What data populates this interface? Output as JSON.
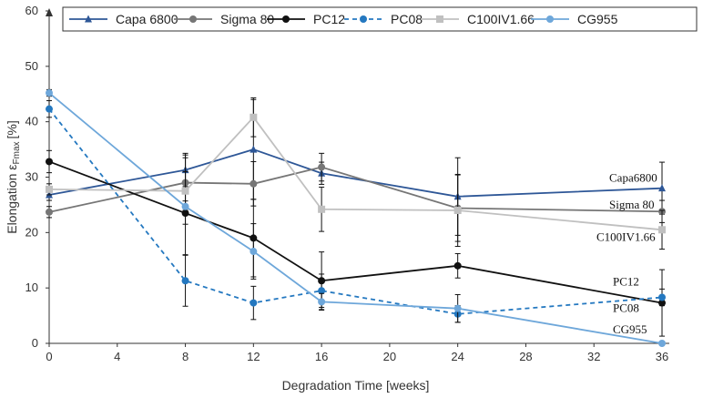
{
  "chart_data": {
    "type": "line",
    "title": "",
    "xlabel": "Degradation Time [weeks]",
    "ylabel": "Elongation ε",
    "ylabel_sub": "Fmax",
    "ylabel_unit": "[%]",
    "xlim": [
      0,
      36
    ],
    "ylim": [
      0,
      60
    ],
    "x_ticks": [
      0,
      4,
      8,
      12,
      16,
      20,
      24,
      28,
      32,
      36
    ],
    "y_ticks": [
      0,
      10,
      20,
      30,
      40,
      50,
      60
    ],
    "legend_position": "top",
    "series": [
      {
        "name": "Capa 6800",
        "color": "#2e5797",
        "marker": "triangle",
        "dash": "solid",
        "points": [
          {
            "x": 0,
            "y": 26.8,
            "err": 1.0
          },
          {
            "x": 8,
            "y": 31.3,
            "err": 3.0
          },
          {
            "x": 12,
            "y": 35.0,
            "err": 9.0
          },
          {
            "x": 16,
            "y": 30.7,
            "err": 2.0
          },
          {
            "x": 24,
            "y": 26.5,
            "err": 7.0
          },
          {
            "x": 36,
            "y": 28.0,
            "err": 4.7
          }
        ]
      },
      {
        "name": "Sigma 80",
        "color": "#767676",
        "marker": "circle",
        "dash": "solid",
        "points": [
          {
            "x": 0,
            "y": 23.7,
            "err": 1.0
          },
          {
            "x": 8,
            "y": 29.0,
            "err": 5.0
          },
          {
            "x": 12,
            "y": 28.8,
            "err": 4.0
          },
          {
            "x": 16,
            "y": 31.8,
            "err": 2.5
          },
          {
            "x": 24,
            "y": 24.4,
            "err": 6.0
          },
          {
            "x": 36,
            "y": 23.8,
            "err": 2.0
          }
        ]
      },
      {
        "name": "PC12",
        "color": "#111111",
        "marker": "circle",
        "dash": "solid",
        "points": [
          {
            "x": 0,
            "y": 32.8,
            "err": 2.0
          },
          {
            "x": 8,
            "y": 23.5,
            "err": 7.5
          },
          {
            "x": 12,
            "y": 19.0,
            "err": 7.0
          },
          {
            "x": 16,
            "y": 11.3,
            "err": 5.2
          },
          {
            "x": 24,
            "y": 14.0,
            "err": 2.2
          },
          {
            "x": 36,
            "y": 7.3,
            "err": 6.0
          }
        ]
      },
      {
        "name": "PC08",
        "color": "#2478c0",
        "marker": "circle",
        "dash": "dashed",
        "points": [
          {
            "x": 0,
            "y": 42.3,
            "err": 1.5
          },
          {
            "x": 8,
            "y": 11.3,
            "err": 4.6
          },
          {
            "x": 12,
            "y": 7.3,
            "err": 3.0
          },
          {
            "x": 16,
            "y": 9.5,
            "err": 3.0
          },
          {
            "x": 24,
            "y": 5.3,
            "err": 1.5
          },
          {
            "x": 36,
            "y": 8.3,
            "err": 1.5
          }
        ]
      },
      {
        "name": "C100IV1.66",
        "color": "#c0c0c0",
        "marker": "square",
        "dash": "solid",
        "points": [
          {
            "x": 0,
            "y": 27.8,
            "err": 1.0
          },
          {
            "x": 8,
            "y": 27.5,
            "err": 6.0
          },
          {
            "x": 12,
            "y": 40.8,
            "err": 3.5
          },
          {
            "x": 16,
            "y": 24.2,
            "err": 4.0
          },
          {
            "x": 24,
            "y": 24.0,
            "err": 6.5
          },
          {
            "x": 36,
            "y": 20.5,
            "err": 3.5
          }
        ]
      },
      {
        "name": "CG955",
        "color": "#6ea7da",
        "marker": "circle",
        "dash": "solid",
        "points": [
          {
            "x": 0,
            "y": 45.2,
            "err": 0.6
          },
          {
            "x": 8,
            "y": 24.7,
            "err": 1.0
          },
          {
            "x": 12,
            "y": 16.6,
            "err": 5.0
          },
          {
            "x": 16,
            "y": 7.5,
            "err": 1.5
          },
          {
            "x": 24,
            "y": 6.3,
            "err": 2.5
          },
          {
            "x": 36,
            "y": 0.0,
            "err": 0.0
          }
        ]
      }
    ],
    "annotations": [
      {
        "text": "Capa6800",
        "series": "Capa 6800"
      },
      {
        "text": "Sigma 80",
        "series": "Sigma 80"
      },
      {
        "text": "C100IV1.66",
        "series": "C100IV1.66"
      },
      {
        "text": "PC12",
        "series": "PC12"
      },
      {
        "text": "PC08",
        "series": "PC08"
      },
      {
        "text": "CG955",
        "series": "CG955"
      }
    ]
  }
}
